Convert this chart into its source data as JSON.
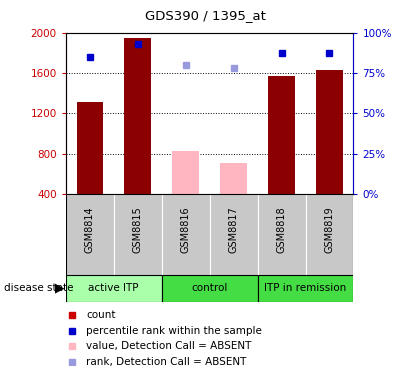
{
  "title": "GDS390 / 1395_at",
  "samples": [
    "GSM8814",
    "GSM8815",
    "GSM8816",
    "GSM8817",
    "GSM8818",
    "GSM8819"
  ],
  "count_values": [
    1310,
    1950,
    null,
    null,
    1570,
    1630
  ],
  "count_absent": [
    null,
    null,
    830,
    710,
    null,
    null
  ],
  "percentile_values": [
    1760,
    1890,
    null,
    null,
    1800,
    1800
  ],
  "percentile_absent": [
    null,
    null,
    1680,
    1650,
    null,
    null
  ],
  "ylim_left": [
    400,
    2000
  ],
  "ylim_right": [
    0,
    100
  ],
  "yticks_left": [
    400,
    800,
    1200,
    1600,
    2000
  ],
  "yticks_right": [
    0,
    25,
    50,
    75,
    100
  ],
  "bar_width": 0.55,
  "bar_color_present": "#8B0000",
  "bar_color_absent": "#FFB6C1",
  "dot_color_present": "#0000CC",
  "dot_color_absent": "#9999DD",
  "left_axis_color": "#CC0000",
  "right_axis_color": "#0000CC",
  "sample_bg_color": "#C8C8C8",
  "plot_bg_color": "#FFFFFF",
  "group_data": [
    {
      "start": 0,
      "end": 2,
      "label": "active ITP",
      "color": "#AAFFAA"
    },
    {
      "start": 2,
      "end": 4,
      "label": "control",
      "color": "#44DD44"
    },
    {
      "start": 4,
      "end": 6,
      "label": "ITP in remission",
      "color": "#44DD44"
    }
  ],
  "legend_items": [
    {
      "color": "#CC0000",
      "label": "count"
    },
    {
      "color": "#0000CC",
      "label": "percentile rank within the sample"
    },
    {
      "color": "#FFB6C1",
      "label": "value, Detection Call = ABSENT"
    },
    {
      "color": "#9999DD",
      "label": "rank, Detection Call = ABSENT"
    }
  ]
}
